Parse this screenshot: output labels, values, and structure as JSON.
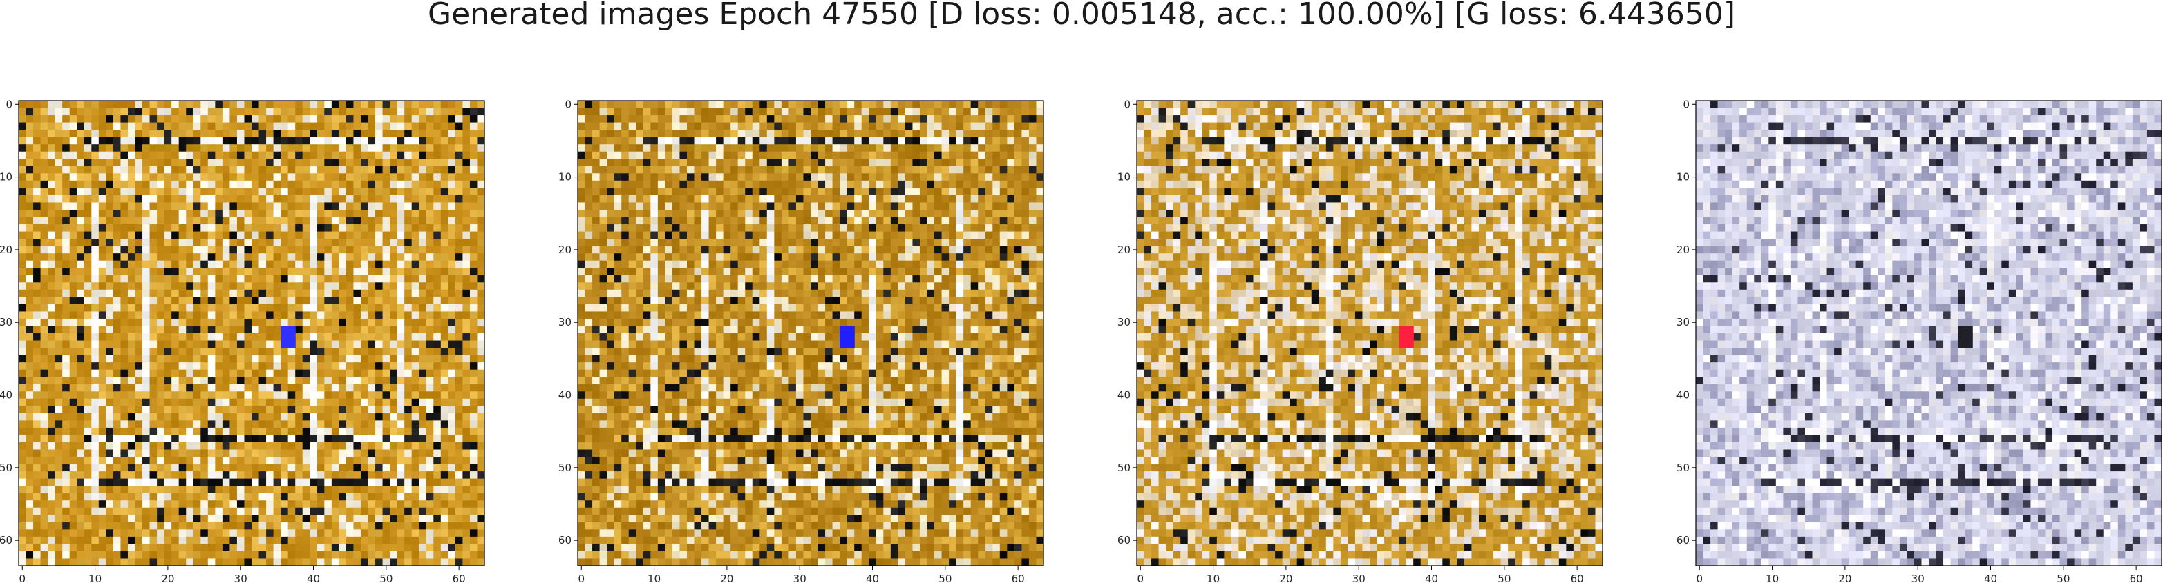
{
  "figure": {
    "title": "Generated images Epoch 47550 [D loss: 0.005148, acc.: 100.00%] [G loss: 6.443650]"
  },
  "axes": {
    "ticks": [
      0,
      10,
      20,
      30,
      40,
      50,
      60
    ],
    "tick_labels": [
      "0",
      "10",
      "20",
      "30",
      "40",
      "50",
      "60"
    ],
    "xlim": [
      -0.5,
      63.5
    ],
    "ylim": [
      63.5,
      -0.5
    ]
  },
  "panels": [
    {
      "name": "generated-image-1",
      "palette": "gold",
      "dominant_colors": [
        "#c8901a",
        "#e0b040",
        "#f5f0e0",
        "#1a1a1a"
      ],
      "accent": "#3030ff"
    },
    {
      "name": "generated-image-2",
      "palette": "gold",
      "dominant_colors": [
        "#b8841a",
        "#d8a838",
        "#f0e6c8",
        "#1a1a1a"
      ],
      "accent": "#2020ff"
    },
    {
      "name": "generated-image-3",
      "palette": "mixed",
      "dominant_colors": [
        "#c89628",
        "#e8d8b8",
        "#f2eef0",
        "#1a1a1a"
      ],
      "accent": "#ff2040"
    },
    {
      "name": "generated-image-4",
      "palette": "lavender",
      "dominant_colors": [
        "#d8d8ec",
        "#a8a8c8",
        "#f4f2f8",
        "#303040"
      ],
      "accent": "#202028"
    }
  ]
}
